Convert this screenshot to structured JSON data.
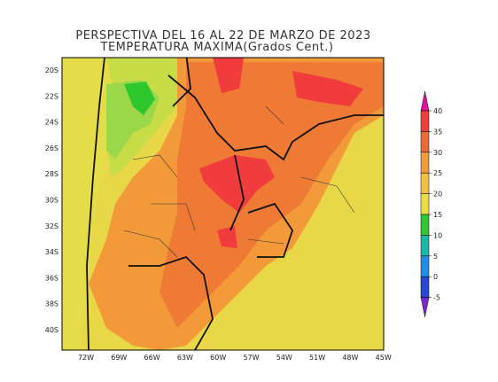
{
  "title": {
    "line1": "PERSPECTIVA DEL 16 AL 22  DE MARZO DE 2023",
    "line2": "TEMPERATURA MAXIMA(Grados Cent.)"
  },
  "map": {
    "lat_labels": [
      "20S",
      "22S",
      "24S",
      "26S",
      "28S",
      "30S",
      "32S",
      "34S",
      "36S",
      "38S",
      "40S"
    ],
    "lon_labels": [
      "72W",
      "69W",
      "66W",
      "63W",
      "60W",
      "57W",
      "54W",
      "51W",
      "48W",
      "45W"
    ]
  },
  "colorbar": {
    "ticks": [
      40,
      35,
      30,
      25,
      20,
      15,
      10,
      5,
      0,
      -5
    ],
    "colors": [
      "#e0159e",
      "#f03c3c",
      "#ee6a35",
      "#f29a3a",
      "#f0c040",
      "#e8e040",
      "#2ec82e",
      "#1ab8a8",
      "#1e8ee8",
      "#2846d8",
      "#7a2ad0"
    ]
  }
}
